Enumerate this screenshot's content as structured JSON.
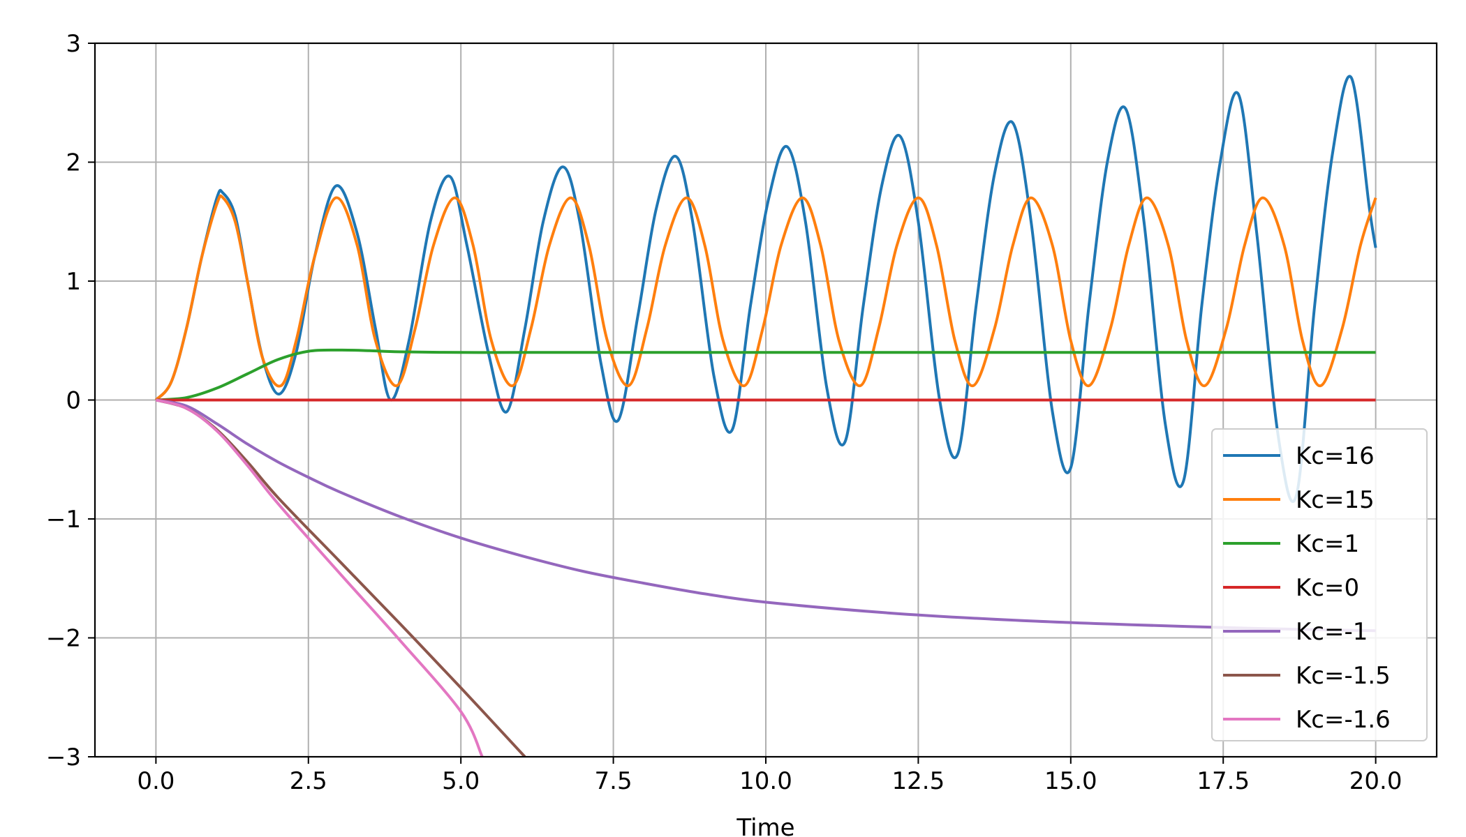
{
  "chart_data": {
    "type": "line",
    "title": "",
    "xlabel": "Time",
    "ylabel": "",
    "xlim": [
      -1.0,
      21.0
    ],
    "ylim": [
      -3,
      3
    ],
    "grid": true,
    "legend_position": "lower-right",
    "x_ticks": [
      0.0,
      2.5,
      5.0,
      7.5,
      10.0,
      12.5,
      15.0,
      17.5,
      20.0
    ],
    "x_tick_labels": [
      "0.0",
      "2.5",
      "5.0",
      "7.5",
      "10.0",
      "12.5",
      "15.0",
      "17.5",
      "20.0"
    ],
    "y_ticks": [
      -3,
      -2,
      -1,
      0,
      1,
      2,
      3
    ],
    "y_tick_labels": [
      "−3",
      "−2",
      "−1",
      "0",
      "1",
      "2",
      "3"
    ],
    "series": [
      {
        "name": "Kc=16",
        "color": "#1f77b4",
        "x": [
          0,
          0.25,
          0.5,
          0.75,
          1.0,
          1.1,
          1.3,
          1.5,
          1.75,
          2.02,
          2.3,
          2.6,
          2.95,
          3.3,
          3.6,
          3.85,
          4.15,
          4.5,
          4.82,
          5.1,
          5.45,
          5.75,
          6.05,
          6.35,
          6.67,
          6.95,
          7.3,
          7.58,
          7.9,
          8.2,
          8.52,
          8.8,
          9.15,
          9.45,
          9.75,
          10.05,
          10.35,
          10.65,
          11.0,
          11.3,
          11.6,
          11.9,
          12.2,
          12.5,
          12.85,
          13.15,
          13.45,
          13.75,
          14.05,
          14.35,
          14.7,
          15.0,
          15.3,
          15.6,
          15.9,
          16.2,
          16.55,
          16.85,
          17.15,
          17.45,
          17.75,
          18.05,
          18.4,
          18.7,
          19.0,
          19.3,
          19.6,
          19.9,
          20.0
        ],
        "y": [
          0,
          0.15,
          0.6,
          1.2,
          1.7,
          1.74,
          1.55,
          1.0,
          0.35,
          0.05,
          0.4,
          1.2,
          1.8,
          1.4,
          0.6,
          0.0,
          0.5,
          1.5,
          1.88,
          1.3,
          0.4,
          -0.1,
          0.6,
          1.5,
          1.96,
          1.5,
          0.3,
          -0.17,
          0.7,
          1.6,
          2.05,
          1.5,
          0.2,
          -0.25,
          0.8,
          1.7,
          2.13,
          1.5,
          0.1,
          -0.35,
          0.8,
          1.8,
          2.22,
          1.5,
          0.0,
          -0.45,
          0.8,
          1.9,
          2.33,
          1.5,
          -0.1,
          -0.57,
          0.8,
          2.0,
          2.45,
          1.5,
          -0.2,
          -0.68,
          0.8,
          2.0,
          2.57,
          1.4,
          -0.3,
          -0.8,
          0.8,
          2.1,
          2.71,
          1.6,
          1.28
        ]
      },
      {
        "name": "Kc=15",
        "color": "#ff7f0e",
        "x": [
          0,
          0.25,
          0.5,
          0.75,
          1.0,
          1.1,
          1.3,
          1.5,
          1.75,
          2.05,
          2.3,
          2.6,
          2.95,
          3.3,
          3.6,
          3.95,
          4.25,
          4.55,
          4.9,
          5.2,
          5.5,
          5.85,
          6.15,
          6.45,
          6.8,
          7.1,
          7.4,
          7.75,
          8.05,
          8.35,
          8.7,
          9.0,
          9.3,
          9.65,
          9.95,
          10.25,
          10.6,
          10.9,
          11.2,
          11.55,
          11.85,
          12.15,
          12.5,
          12.8,
          13.1,
          13.4,
          13.75,
          14.05,
          14.35,
          14.7,
          15.0,
          15.3,
          15.65,
          15.95,
          16.25,
          16.6,
          16.9,
          17.2,
          17.55,
          17.85,
          18.15,
          18.5,
          18.8,
          19.1,
          19.45,
          19.75,
          20.0
        ],
        "y": [
          0,
          0.15,
          0.6,
          1.2,
          1.65,
          1.7,
          1.5,
          1.0,
          0.35,
          0.12,
          0.5,
          1.2,
          1.7,
          1.3,
          0.5,
          0.12,
          0.6,
          1.3,
          1.7,
          1.3,
          0.5,
          0.12,
          0.6,
          1.3,
          1.7,
          1.3,
          0.5,
          0.12,
          0.6,
          1.3,
          1.7,
          1.3,
          0.5,
          0.12,
          0.6,
          1.3,
          1.7,
          1.3,
          0.5,
          0.12,
          0.6,
          1.3,
          1.7,
          1.3,
          0.5,
          0.12,
          0.6,
          1.3,
          1.7,
          1.3,
          0.5,
          0.12,
          0.6,
          1.3,
          1.7,
          1.3,
          0.5,
          0.12,
          0.6,
          1.3,
          1.7,
          1.3,
          0.5,
          0.12,
          0.6,
          1.3,
          1.7
        ]
      },
      {
        "name": "Kc=1",
        "color": "#2ca02c",
        "x": [
          0,
          0.5,
          1.0,
          1.5,
          2.0,
          2.5,
          3.0,
          3.5,
          4.0,
          5.0,
          6.0,
          8.0,
          10.0,
          15.0,
          20.0
        ],
        "y": [
          0,
          0.02,
          0.1,
          0.22,
          0.34,
          0.41,
          0.42,
          0.415,
          0.405,
          0.4,
          0.4,
          0.4,
          0.4,
          0.4,
          0.4
        ]
      },
      {
        "name": "Kc=0",
        "color": "#d62728",
        "x": [
          0,
          20.0
        ],
        "y": [
          0,
          0
        ]
      },
      {
        "name": "Kc=-1",
        "color": "#9467bd",
        "x": [
          0,
          0.5,
          1.0,
          1.5,
          2.0,
          2.5,
          3.0,
          4.0,
          5.0,
          6.0,
          7.0,
          8.0,
          9.0,
          10.0,
          12.0,
          14.0,
          16.0,
          18.0,
          20.0
        ],
        "y": [
          0,
          -0.05,
          -0.2,
          -0.37,
          -0.52,
          -0.65,
          -0.77,
          -0.98,
          -1.16,
          -1.31,
          -1.44,
          -1.54,
          -1.63,
          -1.7,
          -1.79,
          -1.85,
          -1.89,
          -1.92,
          -1.94
        ]
      },
      {
        "name": "Kc=-1.5",
        "color": "#8c564b",
        "x": [
          0,
          0.5,
          1.0,
          1.5,
          2.0,
          3.0,
          4.0,
          5.0,
          6.05
        ],
        "y": [
          0,
          -0.07,
          -0.25,
          -0.52,
          -0.82,
          -1.35,
          -1.88,
          -2.42,
          -3.0
        ]
      },
      {
        "name": "Kc=-1.6",
        "color": "#e377c2",
        "x": [
          0,
          0.5,
          1.0,
          1.5,
          2.0,
          3.0,
          4.0,
          5.0,
          5.35
        ],
        "y": [
          0,
          -0.07,
          -0.26,
          -0.55,
          -0.87,
          -1.45,
          -2.02,
          -2.62,
          -3.0
        ]
      }
    ]
  }
}
